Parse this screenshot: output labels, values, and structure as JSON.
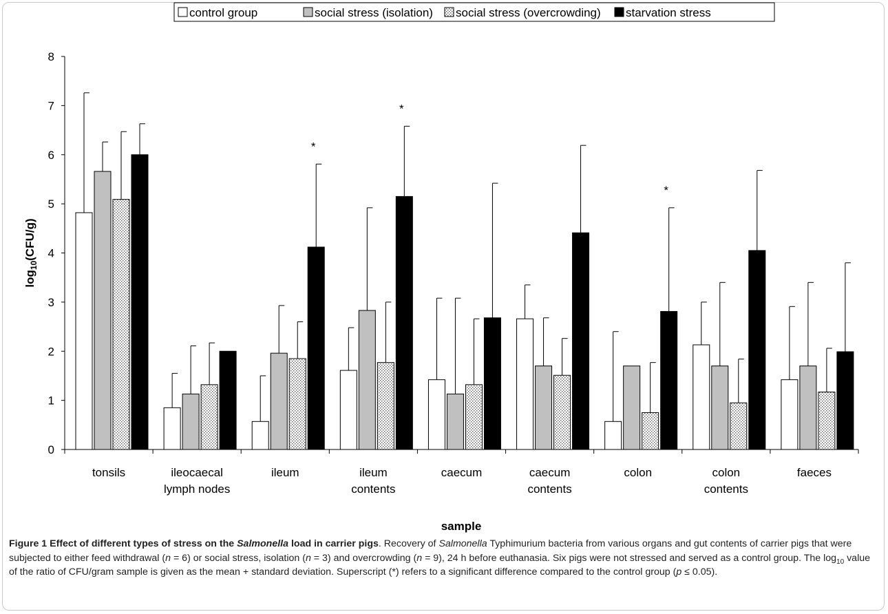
{
  "chart_data": {
    "type": "bar",
    "ylabel": "log10(CFU/g)",
    "ylabel_main": "log",
    "ylabel_sub": "10",
    "ylabel_tail": "(CFU/g)",
    "xlabel": "sample",
    "ylim": [
      0,
      8
    ],
    "yticks": [
      "0",
      "1",
      "2",
      "3",
      "4",
      "5",
      "6",
      "7",
      "8"
    ],
    "legend_position": "top",
    "categories": [
      [
        "tonsils"
      ],
      [
        "ileocaecal",
        "lymph nodes"
      ],
      [
        "ileum"
      ],
      [
        "ileum",
        "contents"
      ],
      [
        "caecum"
      ],
      [
        "caecum",
        "contents"
      ],
      [
        "colon"
      ],
      [
        "colon",
        "contents"
      ],
      [
        "faeces"
      ]
    ],
    "series": [
      {
        "name": "control group",
        "fill": "#ffffff",
        "pattern": "none",
        "values": [
          4.82,
          0.85,
          0.57,
          1.61,
          1.42,
          2.66,
          0.57,
          2.13,
          1.42
        ],
        "errors": [
          2.44,
          0.7,
          0.93,
          0.87,
          1.66,
          0.69,
          1.83,
          0.87,
          1.49
        ]
      },
      {
        "name": "social stress (isolation)",
        "fill": "#c0c0c0",
        "pattern": "none",
        "values": [
          5.66,
          1.13,
          1.96,
          2.83,
          1.13,
          1.7,
          1.7,
          1.7,
          1.7
        ],
        "errors": [
          0.6,
          0.98,
          0.97,
          2.09,
          1.95,
          0.98,
          0.0,
          1.7,
          1.7
        ]
      },
      {
        "name": "social stress (overcrowding)",
        "fill": "#ffffff",
        "pattern": "dots",
        "values": [
          5.09,
          1.32,
          1.85,
          1.77,
          1.32,
          1.51,
          0.75,
          0.95,
          1.17
        ],
        "errors": [
          1.38,
          0.85,
          0.75,
          1.23,
          1.34,
          0.75,
          1.02,
          0.89,
          0.89
        ]
      },
      {
        "name": "starvation stress",
        "fill": "#000000",
        "pattern": "none",
        "values": [
          6.0,
          2.0,
          4.12,
          5.15,
          2.68,
          4.41,
          2.81,
          4.05,
          1.99
        ],
        "errors": [
          0.63,
          0.0,
          1.69,
          1.43,
          2.74,
          1.78,
          2.11,
          1.63,
          1.81
        ],
        "significant": [
          false,
          false,
          true,
          true,
          false,
          false,
          true,
          false,
          false
        ]
      }
    ],
    "significance_marker": "*"
  },
  "caption": {
    "title_pre": "Figure 1 Effect of different types of stress on the ",
    "title_italic": "Salmonella",
    "title_post": " load in carrier pigs",
    "s1": ". Recovery of ",
    "s2": "Salmonella",
    "s3": " Typhimurium bacteria from various organs and gut contents of carrier pigs that were subjected to either feed withdrawal (",
    "s4": "n",
    "s5": " = 6) or social stress, isolation (",
    "s6": "n",
    "s7": " = 3) and overcrowding (",
    "s8": "n",
    "s9": " = 9), 24 h before euthanasia. Six pigs were not stressed and served as a control group. The log",
    "s10": "10",
    "s11": " value of the ratio of CFU/gram sample is given as the mean + standard deviation. Superscript (*) refers to a significant difference compared to the control group (",
    "s12": "p",
    "s13": " ≤ 0.05)."
  }
}
